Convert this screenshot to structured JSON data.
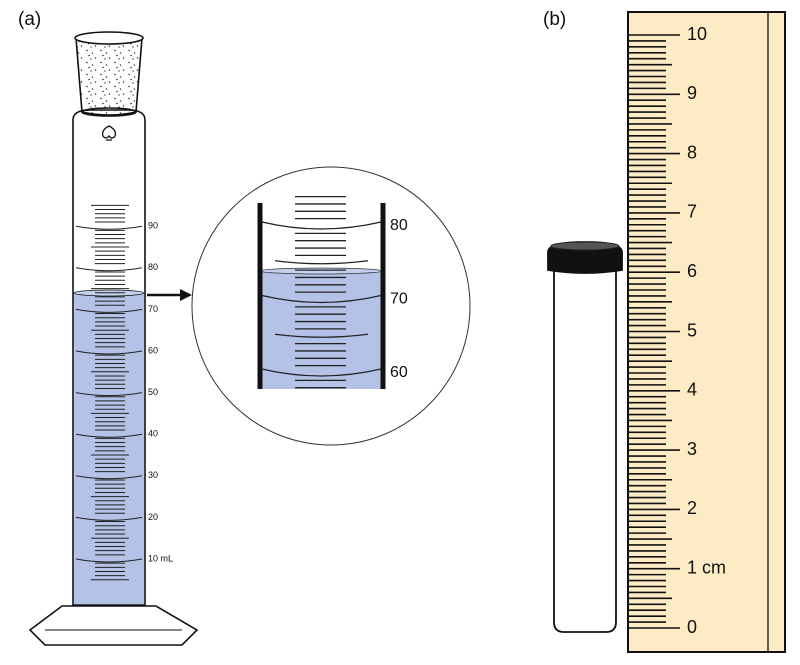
{
  "panel_a": {
    "label": "(a)",
    "scale_labels": [
      "90",
      "80",
      "70",
      "60",
      "50",
      "40",
      "30",
      "20",
      "10 mL"
    ],
    "zoom_labels": [
      "80",
      "70",
      "60"
    ]
  },
  "panel_b": {
    "label": "(b)",
    "ruler_labels": [
      "10",
      "9",
      "8",
      "7",
      "6",
      "5",
      "4",
      "3",
      "2",
      "1 cm",
      "0"
    ]
  }
}
